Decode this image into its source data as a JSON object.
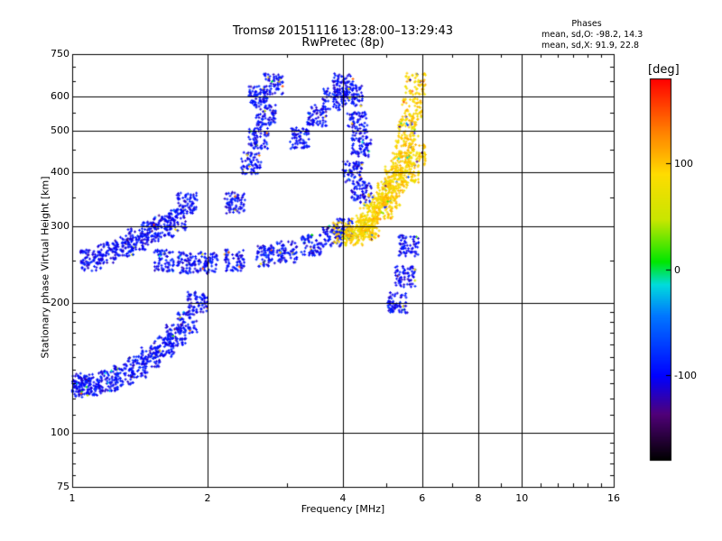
{
  "header": {
    "title_line1": "Tromsø 20151116 13:28:00–13:29:43",
    "title_line2": "RwPretec (8p)"
  },
  "phase_stats": {
    "heading": "Phases",
    "line_o": "mean, sd,O: -98.2, 14.3",
    "line_x": "mean, sd,X: 91.9, 22.8"
  },
  "colorbar": {
    "label": "[deg]",
    "ticks": [
      "100",
      "0",
      "-100"
    ],
    "tick_values": [
      100,
      0,
      -100
    ],
    "range": [
      -180,
      180
    ]
  },
  "chart_data": {
    "type": "scatter",
    "xlabel": "Frequency [MHz]",
    "ylabel": "Stationary phase Virtual Height [km]",
    "x_scale": "log",
    "y_scale": "log",
    "xlim": [
      1,
      16
    ],
    "ylim": [
      75,
      750
    ],
    "x_ticks": [
      1,
      2,
      4,
      6,
      8,
      10,
      16
    ],
    "x_tick_labels": [
      "1",
      "2",
      "4",
      "6",
      "8",
      "10",
      "16"
    ],
    "y_ticks": [
      75,
      100,
      200,
      300,
      400,
      500,
      600,
      750
    ],
    "y_tick_labels": [
      "75",
      "100",
      "200",
      "300",
      "400",
      "500",
      "600",
      "750"
    ],
    "x_grid": [
      2,
      4,
      6,
      8,
      10
    ],
    "y_grid": [
      100,
      200,
      300,
      400,
      500,
      600
    ],
    "grid": true,
    "color_scale": "phase [deg]",
    "series": [
      {
        "mode": "O",
        "mean_phase": -98.2,
        "points": [
          [
            1.0,
            130
          ],
          [
            1.05,
            128
          ],
          [
            1.1,
            129
          ],
          [
            1.2,
            132
          ],
          [
            1.3,
            136
          ],
          [
            1.4,
            142
          ],
          [
            1.5,
            150
          ],
          [
            1.6,
            158
          ],
          [
            1.7,
            168
          ],
          [
            1.8,
            180
          ],
          [
            1.9,
            200
          ],
          [
            1.1,
            250
          ],
          [
            1.2,
            260
          ],
          [
            1.3,
            270
          ],
          [
            1.4,
            280
          ],
          [
            1.5,
            290
          ],
          [
            1.6,
            300
          ],
          [
            1.7,
            310
          ],
          [
            1.8,
            340
          ],
          [
            1.6,
            250
          ],
          [
            1.8,
            247
          ],
          [
            2.0,
            247
          ],
          [
            2.3,
            250
          ],
          [
            2.7,
            256
          ],
          [
            3.0,
            262
          ],
          [
            3.4,
            272
          ],
          [
            3.8,
            285
          ],
          [
            4.0,
            295
          ],
          [
            2.3,
            340
          ],
          [
            2.5,
            420
          ],
          [
            2.6,
            480
          ],
          [
            2.7,
            540
          ],
          [
            2.6,
            600
          ],
          [
            2.8,
            640
          ],
          [
            3.2,
            480
          ],
          [
            3.5,
            540
          ],
          [
            3.8,
            590
          ],
          [
            4.0,
            640
          ],
          [
            4.2,
            600
          ],
          [
            4.3,
            520
          ],
          [
            4.4,
            460
          ],
          [
            4.2,
            400
          ],
          [
            4.4,
            360
          ],
          [
            5.3,
            200
          ],
          [
            5.5,
            230
          ],
          [
            5.6,
            270
          ]
        ]
      },
      {
        "mode": "X",
        "mean_phase": 91.9,
        "points": [
          [
            4.0,
            290
          ],
          [
            4.4,
            300
          ],
          [
            4.6,
            320
          ],
          [
            4.8,
            340
          ],
          [
            5.0,
            360
          ],
          [
            5.2,
            390
          ],
          [
            5.4,
            420
          ],
          [
            5.5,
            460
          ],
          [
            5.6,
            500
          ],
          [
            5.7,
            560
          ],
          [
            5.8,
            640
          ],
          [
            4.6,
            300
          ],
          [
            4.9,
            330
          ],
          [
            5.1,
            350
          ],
          [
            5.3,
            380
          ],
          [
            5.6,
            400
          ],
          [
            5.8,
            440
          ],
          [
            4.2,
            285
          ],
          [
            4.5,
            295
          ]
        ]
      }
    ]
  }
}
